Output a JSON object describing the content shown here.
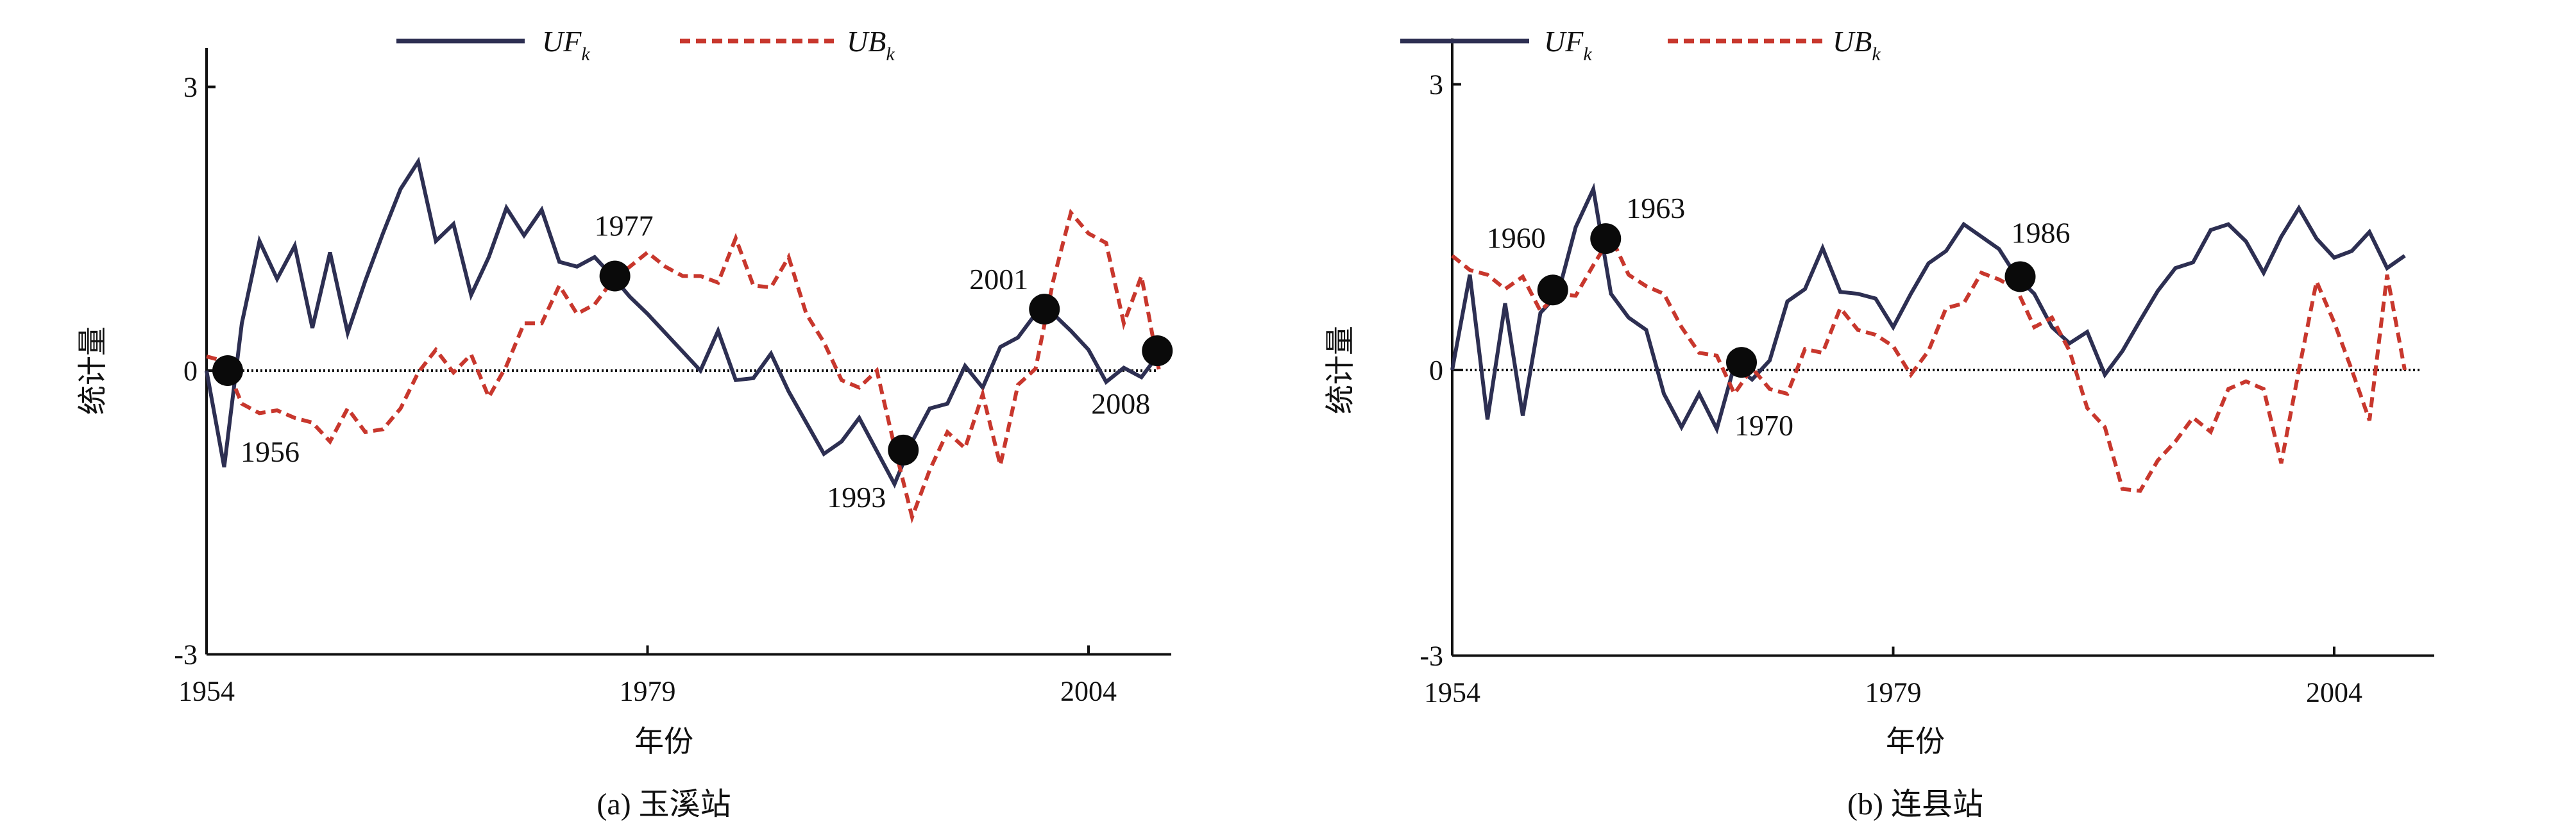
{
  "colors": {
    "uf": "#2d2f52",
    "ub": "#c8372d",
    "axis": "#111111",
    "marker": "#0a0a0a"
  },
  "chart_data": [
    {
      "type": "line",
      "caption": "(a) 玉溪站",
      "xlabel": "年份",
      "ylabel": "统计量",
      "xlim": [
        1954,
        2010
      ],
      "ylim": [
        -3,
        3
      ],
      "xticks": [
        "1954",
        "1979",
        "2004"
      ],
      "xtick_values": [
        1954,
        1979,
        2004
      ],
      "yticks": [
        "3",
        "0",
        "-3"
      ],
      "ytick_values": [
        3,
        0,
        -3
      ],
      "legend": {
        "position": "top-center",
        "entries": [
          {
            "main": "UF",
            "sub": "k"
          },
          {
            "main": "UB",
            "sub": "k"
          }
        ]
      },
      "reference_line": 0,
      "x": [
        1954,
        1955,
        1956,
        1957,
        1958,
        1959,
        1960,
        1961,
        1962,
        1963,
        1964,
        1965,
        1966,
        1967,
        1968,
        1969,
        1970,
        1971,
        1972,
        1973,
        1974,
        1975,
        1976,
        1977,
        1978,
        1979,
        1980,
        1981,
        1982,
        1983,
        1984,
        1985,
        1986,
        1987,
        1988,
        1989,
        1990,
        1991,
        1992,
        1993,
        1994,
        1995,
        1996,
        1997,
        1998,
        1999,
        2000,
        2001,
        2002,
        2003,
        2004,
        2005,
        2006,
        2007,
        2008
      ],
      "series": [
        {
          "name": "UFk",
          "values": [
            0,
            -1.02,
            0.5,
            1.37,
            0.97,
            1.32,
            0.45,
            1.25,
            0.4,
            0.95,
            1.45,
            1.92,
            2.21,
            1.37,
            1.55,
            0.8,
            1.2,
            1.72,
            1.43,
            1.7,
            1.15,
            1.1,
            1.2,
            1.0,
            0.78,
            0.6,
            0.4,
            0.2,
            0.0,
            0.42,
            -0.1,
            -0.08,
            0.18,
            -0.22,
            -0.55,
            -0.88,
            -0.75,
            -0.5,
            -0.85,
            -1.2,
            -0.75,
            -0.4,
            -0.35,
            0.05,
            -0.18,
            0.25,
            0.35,
            0.6,
            0.6,
            0.42,
            0.22,
            -0.12,
            0.03,
            -0.07,
            0.18
          ]
        },
        {
          "name": "UBk",
          "values": [
            0.15,
            0.1,
            -0.35,
            -0.45,
            -0.42,
            -0.5,
            -0.55,
            -0.75,
            -0.4,
            -0.65,
            -0.62,
            -0.4,
            -0.02,
            0.22,
            -0.02,
            0.17,
            -0.28,
            0.05,
            0.5,
            0.5,
            0.9,
            0.6,
            0.7,
            0.95,
            1.1,
            1.25,
            1.1,
            1.0,
            1.0,
            0.93,
            1.4,
            0.9,
            0.88,
            1.2,
            0.6,
            0.3,
            -0.1,
            -0.18,
            0.0,
            -0.8,
            -1.55,
            -1.05,
            -0.65,
            -0.82,
            -0.25,
            -1.0,
            -0.15,
            0.02,
            0.95,
            1.67,
            1.45,
            1.35,
            0.5,
            1.0,
            0.0
          ]
        }
      ],
      "annotations": [
        {
          "label": "1956",
          "x": 1955.2,
          "y": 0.0
        },
        {
          "label": "1977",
          "x": 1977.15,
          "y": 1.0
        },
        {
          "label": "1993",
          "x": 1993.5,
          "y": -0.84
        },
        {
          "label": "2001",
          "x": 2001.5,
          "y": 0.65
        },
        {
          "label": "2008",
          "x": 2007.9,
          "y": 0.21
        }
      ]
    },
    {
      "type": "line",
      "caption": "(b) 连县站",
      "xlabel": "年份",
      "ylabel": "统计量",
      "xlim": [
        1954,
        2010
      ],
      "ylim": [
        -3,
        3
      ],
      "xticks": [
        "1954",
        "1979",
        "2004"
      ],
      "xtick_values": [
        1954,
        1979,
        2004
      ],
      "yticks": [
        "3",
        "0",
        "-3"
      ],
      "ytick_values": [
        3,
        0,
        -3
      ],
      "legend": {
        "position": "top-center",
        "entries": [
          {
            "main": "UF",
            "sub": "k"
          },
          {
            "main": "UB",
            "sub": "k"
          }
        ]
      },
      "reference_line": 0,
      "x": [
        1954,
        1955,
        1956,
        1957,
        1958,
        1959,
        1960,
        1961,
        1962,
        1963,
        1964,
        1965,
        1966,
        1967,
        1968,
        1969,
        1970,
        1971,
        1972,
        1973,
        1974,
        1975,
        1976,
        1977,
        1978,
        1979,
        1980,
        1981,
        1982,
        1983,
        1984,
        1985,
        1986,
        1987,
        1988,
        1989,
        1990,
        1991,
        1992,
        1993,
        1994,
        1995,
        1996,
        1997,
        1998,
        1999,
        2000,
        2001,
        2002,
        2003,
        2004,
        2005,
        2006,
        2007,
        2008
      ],
      "series": [
        {
          "name": "UFk",
          "values": [
            0,
            1.0,
            -0.52,
            0.7,
            -0.48,
            0.6,
            0.8,
            1.5,
            1.9,
            0.8,
            0.55,
            0.42,
            -0.25,
            -0.6,
            -0.25,
            -0.62,
            0.05,
            -0.1,
            0.1,
            0.72,
            0.85,
            1.28,
            0.82,
            0.8,
            0.75,
            0.45,
            0.8,
            1.12,
            1.25,
            1.53,
            1.4,
            1.27,
            0.98,
            0.8,
            0.45,
            0.28,
            0.4,
            -0.05,
            0.2,
            0.52,
            0.83,
            1.07,
            1.13,
            1.47,
            1.53,
            1.35,
            1.02,
            1.4,
            1.7,
            1.38,
            1.18,
            1.25,
            1.45,
            1.07,
            1.2
          ]
        },
        {
          "name": "UBk",
          "values": [
            1.2,
            1.05,
            1.0,
            0.85,
            0.98,
            0.62,
            0.8,
            0.78,
            1.1,
            1.4,
            1.0,
            0.88,
            0.8,
            0.45,
            0.18,
            0.15,
            -0.25,
            0.02,
            -0.2,
            -0.25,
            0.22,
            0.18,
            0.65,
            0.42,
            0.37,
            0.25,
            -0.05,
            0.2,
            0.65,
            0.7,
            1.02,
            0.95,
            0.85,
            0.45,
            0.55,
            0.2,
            -0.4,
            -0.6,
            -1.25,
            -1.27,
            -0.95,
            -0.75,
            -0.5,
            -0.65,
            -0.2,
            -0.12,
            -0.2,
            -0.98,
            0.0,
            0.93,
            0.5,
            0.0,
            -0.53,
            1.0,
            0.0
          ]
        }
      ],
      "annotations": [
        {
          "label": "1960",
          "x": 1959.7,
          "y": 0.84
        },
        {
          "label": "1963",
          "x": 1962.7,
          "y": 1.38
        },
        {
          "label": "1970",
          "x": 1970.4,
          "y": 0.08
        },
        {
          "label": "1986",
          "x": 1986.2,
          "y": 0.98
        }
      ]
    }
  ]
}
